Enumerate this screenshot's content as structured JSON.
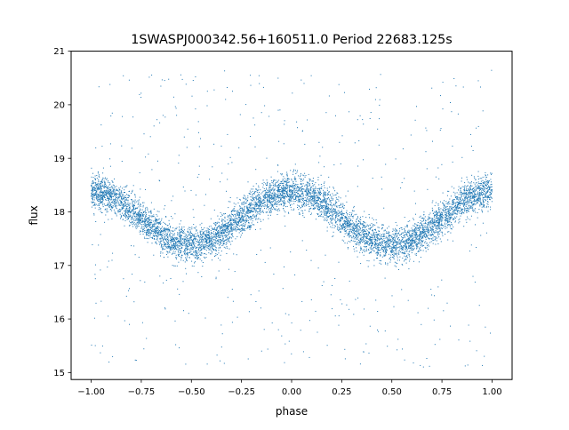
{
  "chart_data": {
    "type": "scatter",
    "title": "1SWASPJ000342.56+160511.0 Period 22683.125s",
    "xlabel": "phase",
    "ylabel": "flux",
    "xlim": [
      -1.1,
      1.1
    ],
    "ylim": [
      14.87,
      21.0
    ],
    "xticks": [
      -1.0,
      -0.75,
      -0.5,
      -0.25,
      0.0,
      0.25,
      0.5,
      0.75,
      1.0
    ],
    "xtick_labels": [
      "−1.00",
      "−0.75",
      "−0.50",
      "−0.25",
      "0.00",
      "0.25",
      "0.50",
      "0.75",
      "1.00"
    ],
    "yticks": [
      15,
      16,
      17,
      18,
      19,
      20,
      21
    ],
    "ytick_labels": [
      "15",
      "16",
      "17",
      "18",
      "19",
      "20",
      "21"
    ],
    "grid": false,
    "legend": "none",
    "series": [
      {
        "marker_color": "#1f77b4",
        "phase_range": [
          -1.0,
          1.0
        ],
        "model": "sinusoid",
        "mean_flux": 17.88,
        "amplitude": 0.5,
        "flux_max_at_phase": 0.0,
        "flux_min_at_phase": [
          -0.5,
          0.5
        ],
        "scatter": 0.16,
        "points": [
          [
            -1.0,
            18.38
          ],
          [
            -0.9,
            18.28
          ],
          [
            -0.8,
            18.0
          ],
          [
            -0.7,
            17.7
          ],
          [
            -0.6,
            17.45
          ],
          [
            -0.5,
            17.38
          ],
          [
            -0.4,
            17.5
          ],
          [
            -0.3,
            17.78
          ],
          [
            -0.2,
            18.08
          ],
          [
            -0.1,
            18.32
          ],
          [
            0.0,
            18.4
          ],
          [
            0.1,
            18.3
          ],
          [
            0.2,
            18.0
          ],
          [
            0.3,
            17.7
          ],
          [
            0.4,
            17.47
          ],
          [
            0.5,
            17.38
          ],
          [
            0.6,
            17.5
          ],
          [
            0.7,
            17.78
          ],
          [
            0.8,
            18.08
          ],
          [
            0.9,
            18.32
          ],
          [
            1.0,
            18.38
          ]
        ],
        "outlier_flux_range": [
          15.1,
          20.7
        ]
      }
    ]
  }
}
